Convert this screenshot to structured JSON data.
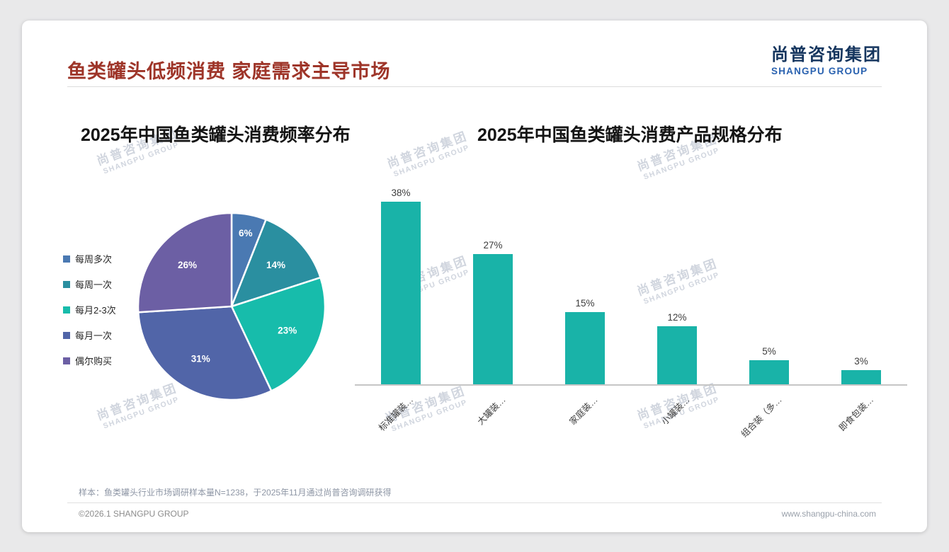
{
  "page": {
    "title": "鱼类罐头低频消费 家庭需求主导市场",
    "logo": {
      "cn": "尚普咨询集团",
      "en": "SHANGPU GROUP"
    },
    "watermark": {
      "cn": "尚普咨询集团",
      "en": "SHANGPU GROUP"
    },
    "footnote": "样本：鱼类罐头行业市场调研样本量N=1238，于2025年11月通过尚普咨询调研获得",
    "footer_left": "©2026.1 SHANGPU GROUP",
    "footer_right": "www.shangpu-china.com"
  },
  "colors": {
    "title_red": "#9e3529",
    "logo_navy": "#15355e",
    "logo_blue": "#2a62b0",
    "bar_teal": "#19b3a8",
    "axis_gray": "#c6c6c6",
    "watermark_gray": "#c5cbd6"
  },
  "chart_data": [
    {
      "type": "pie",
      "title": "2025年中国鱼类罐头消费频率分布",
      "categories": [
        "每周多次",
        "每周一次",
        "每月2-3次",
        "每月一次",
        "偶尔购买"
      ],
      "values": [
        6,
        14,
        23,
        31,
        26
      ],
      "unit": "%",
      "label_suffix": "%",
      "colors": [
        "#4a79b2",
        "#2a8fa0",
        "#17bcab",
        "#5165a8",
        "#6c5fa4"
      ],
      "legend_position": "left",
      "data_labels": "inside",
      "start_angle_deg": -90,
      "direction": "clockwise"
    },
    {
      "type": "bar",
      "title": "2025年中国鱼类罐头消费产品规格分布",
      "categories": [
        "标准罐装…",
        "大罐装…",
        "家庭装…",
        "小罐装…",
        "组合装（多…",
        "即食包装…"
      ],
      "values": [
        38,
        27,
        15,
        12,
        5,
        3
      ],
      "value_suffix": "%",
      "bar_color": "#19b3a8",
      "ylim": [
        0,
        40
      ],
      "grid": false,
      "axis": "bottom-only",
      "category_label_rotation_deg": -45
    }
  ]
}
